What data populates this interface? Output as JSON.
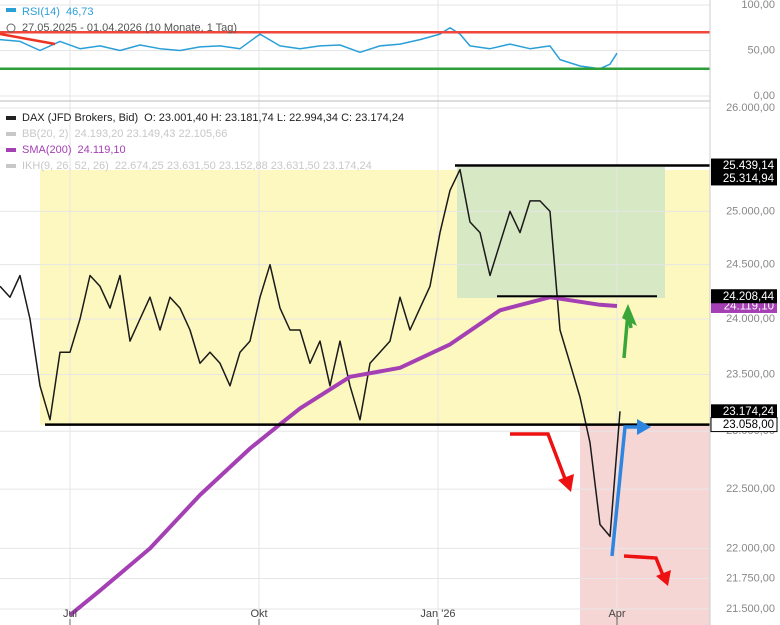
{
  "chart_data": [
    {
      "type": "line",
      "legend_name": "RSI(14)",
      "legend_value": "46,73",
      "date_range": "27.05.2025 - 01.04.2026 (10 Monate, 1 Tag)",
      "xlim": [
        0,
        71
      ],
      "ylim": [
        0,
        100
      ],
      "yticks": [
        {
          "value": 0,
          "label": "0,00"
        },
        {
          "value": 50,
          "label": "50,00"
        },
        {
          "value": 100,
          "label": "100,00"
        }
      ],
      "levels": [
        {
          "value": 70,
          "color": "#f0463c"
        },
        {
          "value": 30,
          "color": "#2e9e3a"
        }
      ],
      "series": [
        {
          "color": "#2a9fd8",
          "x": [
            0,
            2,
            4,
            6,
            8,
            10,
            12,
            14,
            16,
            18,
            20,
            22,
            24,
            26,
            28,
            30,
            32,
            34,
            36,
            38,
            40,
            42,
            44,
            45,
            46,
            47,
            49,
            51,
            53,
            55,
            56,
            58,
            60,
            61,
            61.7
          ],
          "values": [
            62,
            60,
            50,
            60,
            52,
            55,
            50,
            56,
            52,
            50,
            54,
            55,
            52,
            68,
            55,
            52,
            55,
            56,
            48,
            55,
            57,
            62,
            68,
            75,
            68,
            55,
            52,
            57,
            52,
            55,
            40,
            33,
            30,
            35,
            47
          ]
        }
      ]
    },
    {
      "type": "line",
      "log": true,
      "xlim": [
        0,
        71
      ],
      "ylim": [
        21394,
        26040
      ],
      "legend": [
        {
          "name": "DAX (JFD Brokers, Bid)",
          "text": "O: 23.001,40  H: 23.181,74  L: 22.994,34  C: 23.174,24",
          "color": "#222222"
        },
        {
          "name": "BB(20, 2)",
          "text": "24.193,20  23.149,43  22.105,66",
          "color": "#c8c8c8"
        },
        {
          "name": "SMA(200)",
          "text": "24.119,10",
          "color": "#a43fb4"
        },
        {
          "name": "IKH(9, 26, 52, 26)",
          "text": "22.674,25  23.631,50  23.152,88  23.631,50  23.174,24",
          "color": "#c8c8c8"
        }
      ],
      "xticks": [
        {
          "value": 7,
          "label": "Jul"
        },
        {
          "value": 25.9,
          "label": "Okt"
        },
        {
          "value": 43.8,
          "label": "Jan '26"
        },
        {
          "value": 61.7,
          "label": "Apr"
        }
      ],
      "yticks": [
        {
          "value": 26000,
          "label": "26.000,00"
        },
        {
          "value": 25000,
          "label": "25.000,00"
        },
        {
          "value": 24500,
          "label": "24.500,00"
        },
        {
          "value": 24000,
          "label": "24.000,00"
        },
        {
          "value": 23500,
          "label": "23.500,00"
        },
        {
          "value": 23000,
          "label": "23.000,00"
        },
        {
          "value": 22500,
          "label": "22.500,00"
        },
        {
          "value": 22000,
          "label": "22.000,00"
        },
        {
          "value": 21750,
          "label": "21.750,00"
        },
        {
          "value": 21500,
          "label": "21.500,00"
        }
      ],
      "levels": [
        {
          "value": 25439.14,
          "label": "25.439,14",
          "color": "#000000"
        },
        {
          "value": 25314.94,
          "label": "25.314,94",
          "color": "#000000"
        },
        {
          "value": 24119.1,
          "label": "24.119,10",
          "color": "#a43fb4"
        },
        {
          "value": 24208.44,
          "label": "24.208,44",
          "color": "#000000"
        },
        {
          "value": 23174.24,
          "label": "23.174,24",
          "color": "#000000"
        },
        {
          "value": 23058.0,
          "label": "23.058,00",
          "color": "#ffffff"
        }
      ],
      "series": [
        {
          "color": "#1a1a1a",
          "x": [
            0,
            1,
            2,
            3,
            4,
            5,
            6,
            7,
            8,
            9,
            10,
            11,
            12,
            13,
            14,
            15,
            16,
            17,
            18,
            19,
            20,
            21,
            22,
            23,
            24,
            25,
            26,
            27,
            28,
            29,
            30,
            31,
            32,
            33,
            34,
            35,
            36,
            37,
            38,
            39,
            40,
            41,
            42,
            43,
            44,
            45,
            46,
            47,
            48,
            49,
            50,
            51,
            52,
            53,
            54,
            55,
            56,
            57,
            58,
            59,
            60,
            61,
            62
          ],
          "values": [
            24300,
            24200,
            24400,
            24000,
            23400,
            23100,
            23700,
            23700,
            24000,
            24400,
            24300,
            24100,
            24400,
            23800,
            24000,
            24200,
            23900,
            24200,
            24100,
            23900,
            23600,
            23700,
            23600,
            23400,
            23700,
            23800,
            24200,
            24500,
            24100,
            23900,
            23900,
            23600,
            23800,
            23400,
            23800,
            23400,
            23100,
            23600,
            23700,
            23800,
            24200,
            23900,
            24100,
            24300,
            24800,
            25200,
            25400,
            24900,
            24800,
            24400,
            24700,
            25000,
            24800,
            25100,
            25100,
            25000,
            23900,
            23600,
            23300,
            22900,
            22200,
            22100,
            23174.24
          ]
        },
        {
          "color": "#a43fb4",
          "x": [
            7,
            10,
            15,
            20,
            25,
            28,
            30,
            35,
            40,
            45,
            50,
            55,
            60,
            61.7
          ],
          "values": [
            21450,
            21650,
            22000,
            22450,
            22850,
            23060,
            23200,
            23480,
            23560,
            23770,
            24080,
            24200,
            24130,
            24119.1
          ]
        }
      ]
    }
  ]
}
